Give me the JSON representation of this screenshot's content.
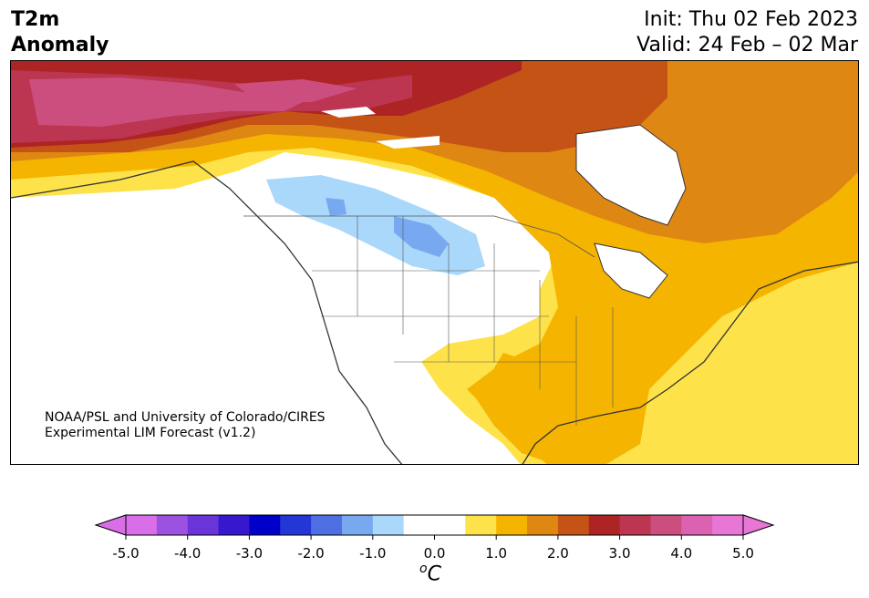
{
  "title": {
    "left_line1": "T2m",
    "left_line2": "Anomaly",
    "init": "Init: Thu 02 Feb 2023",
    "valid": "Valid: 24 Feb – 02 Mar"
  },
  "credit": {
    "line1": "NOAA/PSL and University of Colorado/CIRES",
    "line2": "Experimental LIM Forecast (v1.2)"
  },
  "colorbar": {
    "units_base": "C",
    "units_super": "o",
    "ticks": [
      "-5.0",
      "-4.0",
      "-3.0",
      "-2.0",
      "-1.0",
      "0.0",
      "1.0",
      "2.0",
      "3.0",
      "4.0",
      "5.0"
    ],
    "colors": [
      "#d96ee8",
      "#9b52e0",
      "#6a35d8",
      "#3818cf",
      "#0000c8",
      "#2436d6",
      "#4e6fe2",
      "#78a9f0",
      "#a9d8fb",
      "#ffffff",
      "#ffffff",
      "#fde24a",
      "#f4b400",
      "#de8813",
      "#c65316",
      "#ae2424",
      "#bc3551",
      "#cc4e7e",
      "#da62b0",
      "#e876d6"
    ],
    "end_low_color": "#d96ee8",
    "end_high_color": "#e876d6"
  },
  "map": {
    "description_colors": {
      "neg1": "#a9d8fb",
      "neg2": "#78a9f0",
      "pos1": "#fde24a",
      "pos2": "#f4b400",
      "pos3": "#de8813",
      "pos4": "#c65316",
      "pos5": "#ae2424",
      "pos6": "#bc3551",
      "pos7": "#cc4e7e"
    }
  }
}
